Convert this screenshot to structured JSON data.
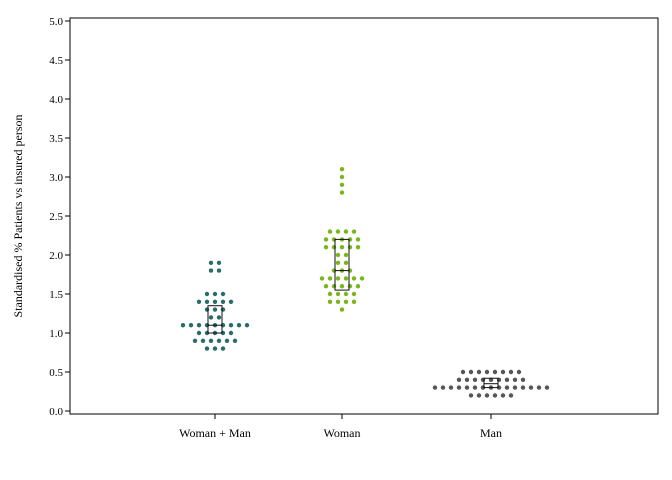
{
  "chart_data": {
    "type": "scatter",
    "subtype": "beeswarm-with-boxplot",
    "ylabel": "Standardised % Patients vs insured person",
    "ylim": [
      0,
      5
    ],
    "yticks": [
      "0.0",
      "0.5",
      "1.0",
      "1.5",
      "2.0",
      "2.5",
      "3.0",
      "3.5",
      "4.0",
      "4.5",
      "5.0"
    ],
    "categories": [
      "Woman + Man",
      "Woman",
      "Man"
    ],
    "grid": false,
    "series": [
      {
        "color": "#2a6b6b",
        "points": [
          {
            "v": 1.9,
            "n": 2
          },
          {
            "v": 1.8,
            "n": 2
          },
          {
            "v": 1.5,
            "n": 3
          },
          {
            "v": 1.4,
            "n": 5
          },
          {
            "v": 1.3,
            "n": 3
          },
          {
            "v": 1.2,
            "n": 2
          },
          {
            "v": 1.1,
            "n": 9
          },
          {
            "v": 1.0,
            "n": 5
          },
          {
            "v": 0.9,
            "n": 6
          },
          {
            "v": 0.8,
            "n": 3
          }
        ],
        "box": {
          "q1": 1.0,
          "median": 1.1,
          "q3": 1.35
        }
      },
      {
        "color": "#7ab51d",
        "points": [
          {
            "v": 3.1,
            "n": 1
          },
          {
            "v": 3.0,
            "n": 1
          },
          {
            "v": 2.9,
            "n": 1
          },
          {
            "v": 2.8,
            "n": 1
          },
          {
            "v": 2.3,
            "n": 4
          },
          {
            "v": 2.2,
            "n": 5
          },
          {
            "v": 2.1,
            "n": 5
          },
          {
            "v": 2.0,
            "n": 2
          },
          {
            "v": 1.9,
            "n": 2
          },
          {
            "v": 1.8,
            "n": 3
          },
          {
            "v": 1.7,
            "n": 6
          },
          {
            "v": 1.6,
            "n": 5
          },
          {
            "v": 1.5,
            "n": 4
          },
          {
            "v": 1.4,
            "n": 4
          },
          {
            "v": 1.3,
            "n": 1
          }
        ],
        "box": {
          "q1": 1.55,
          "median": 1.8,
          "q3": 2.2
        }
      },
      {
        "color": "#555555",
        "points": [
          {
            "v": 0.5,
            "n": 8
          },
          {
            "v": 0.4,
            "n": 9
          },
          {
            "v": 0.3,
            "n": 15
          },
          {
            "v": 0.2,
            "n": 6
          }
        ],
        "box": {
          "q1": 0.3,
          "median": 0.35,
          "q3": 0.42
        }
      }
    ]
  }
}
